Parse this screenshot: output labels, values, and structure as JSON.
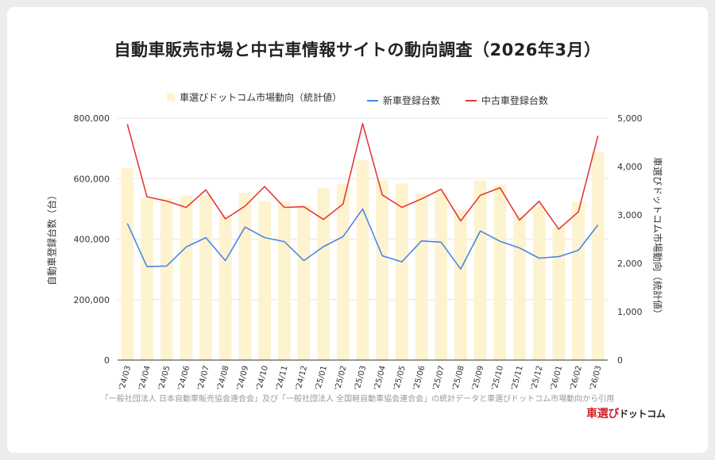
{
  "title": "自動車販売市場と中古車情報サイトの動向調査（2026年3月）",
  "legend": {
    "index_label": "車選びドットコム市場動向（統計値）",
    "new_label": "新車登録台数",
    "used_label": "中古車登録台数"
  },
  "y_left_label": "自動車登録台数（台）",
  "y_right_label": "車選びドットコム市場動向（統計値）",
  "footnote": "「一般社団法人 日本自動車販売協会連合会」及び「一般社団法人 全国軽自動車協会連合会」の統計データと車選びドットコム市場動向から引用",
  "logo": {
    "part1": "車選び",
    "part2": "ドットコム"
  },
  "colors": {
    "bar": "#fef3cf",
    "new": "#4a86e8",
    "used": "#e53935",
    "grid": "#e6e6e6"
  },
  "chart_data": {
    "type": "bar+line",
    "categories": [
      "'24/03",
      "'24/04",
      "'24/05",
      "'24/06",
      "'24/07",
      "'24/08",
      "'24/09",
      "'24/10",
      "'24/11",
      "'24/12",
      "'25/01",
      "'25/02",
      "'25/03",
      "'25/04",
      "'25/05",
      "'25/06",
      "'25/07",
      "'25/08",
      "'25/09",
      "'25/10",
      "'25/11",
      "'25/12",
      "'26/01",
      "'26/02",
      "'26/03"
    ],
    "y_left": {
      "label": "自動車登録台数（台）",
      "ylim": [
        0,
        800000
      ],
      "ticks": [
        0,
        200000,
        400000,
        600000,
        800000
      ],
      "tick_labels": [
        "0",
        "200,000",
        "400,000",
        "600,000",
        "800,000"
      ]
    },
    "y_right": {
      "label": "車選びドットコム市場動向（統計値）",
      "ylim": [
        0,
        5000
      ],
      "ticks": [
        0,
        1000,
        2000,
        3000,
        4000,
        5000
      ],
      "tick_labels": [
        "0",
        "1,000",
        "2,000",
        "3,000",
        "4,000",
        "5,000"
      ]
    },
    "series": [
      {
        "name": "車選びドットコム市場動向（統計値）",
        "type": "bar",
        "axis": "right",
        "values": [
          3970,
          3340,
          3340,
          3400,
          3420,
          3000,
          3460,
          3280,
          3280,
          3200,
          3560,
          3640,
          4130,
          3710,
          3650,
          3440,
          3460,
          3110,
          3710,
          3620,
          2990,
          3170,
          2740,
          3270,
          4300
        ]
      },
      {
        "name": "新車登録台数",
        "type": "line",
        "axis": "left",
        "values": [
          452000,
          309000,
          311000,
          374000,
          405000,
          329000,
          440000,
          405000,
          392000,
          329000,
          375000,
          408000,
          500000,
          345000,
          325000,
          394000,
          390000,
          301000,
          427000,
          393000,
          371000,
          337000,
          342000,
          363000,
          447000
        ]
      },
      {
        "name": "中古車登録台数",
        "type": "line",
        "axis": "left",
        "values": [
          780000,
          540000,
          526000,
          505000,
          563000,
          467000,
          509000,
          574000,
          505000,
          507000,
          465000,
          516000,
          782000,
          546000,
          505000,
          533000,
          565000,
          460000,
          545000,
          570000,
          463000,
          525000,
          433000,
          490000,
          742000
        ]
      }
    ],
    "grid": true,
    "legend_position": "top-center"
  }
}
